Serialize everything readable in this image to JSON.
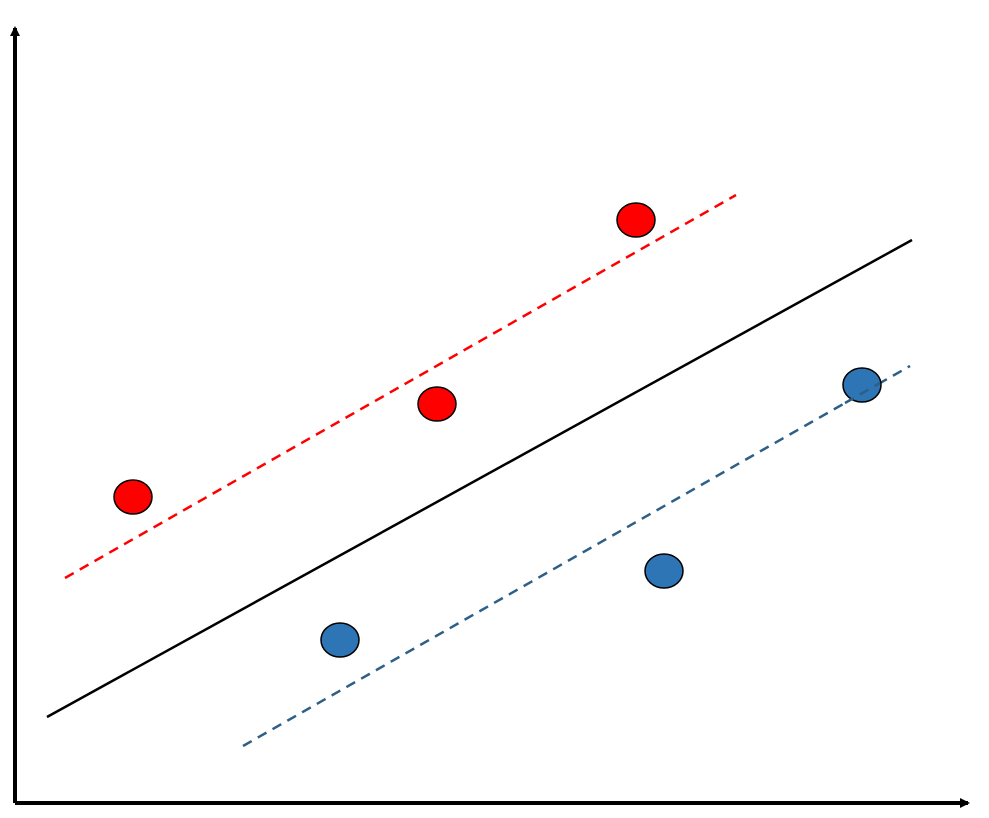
{
  "diagram": {
    "type": "svm-margin-illustration",
    "colors": {
      "background": "#ffffff",
      "axis": "#000000",
      "separator": "#000000",
      "positive_class": "#ff0000",
      "negative_class": "#2e75b6",
      "positive_margin": "#ff0000",
      "negative_margin": "#2e5f86",
      "point_outline": "#000000"
    },
    "axes": {
      "x_arrow": true,
      "y_arrow": true,
      "labels": []
    },
    "lines": [
      {
        "name": "decision-boundary",
        "style": "solid"
      },
      {
        "name": "positive-margin",
        "style": "dashed"
      },
      {
        "name": "negative-margin",
        "style": "dashed"
      }
    ],
    "classes": [
      {
        "name": "red",
        "point_count": 3
      },
      {
        "name": "blue",
        "point_count": 3
      }
    ]
  }
}
